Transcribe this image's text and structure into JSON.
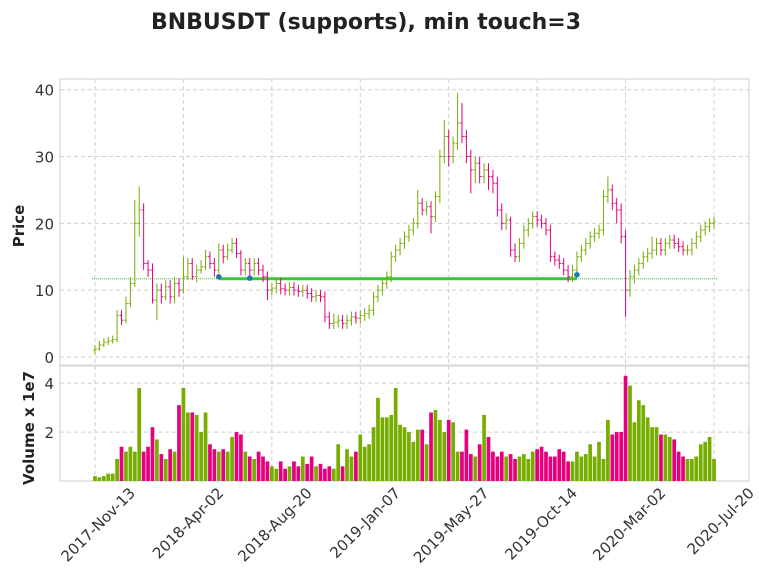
{
  "chart_data": {
    "type": "ohlc",
    "title": "BNBUSDT (supports), min touch=3",
    "ylabel": "Price",
    "volume_label": "Volume x 1e7",
    "up_color": "#76ad00",
    "down_color": "#e6007e",
    "grid": true,
    "categories": [
      "2017-Nov-13",
      null,
      null,
      null,
      null,
      null,
      null,
      null,
      null,
      null,
      null,
      null,
      null,
      null,
      null,
      null,
      null,
      null,
      null,
      null,
      "2018-Apr-02",
      null,
      null,
      null,
      null,
      null,
      null,
      null,
      null,
      null,
      null,
      null,
      null,
      null,
      null,
      null,
      null,
      null,
      null,
      null,
      "2018-Aug-20",
      null,
      null,
      null,
      null,
      null,
      null,
      null,
      null,
      null,
      null,
      null,
      null,
      null,
      null,
      null,
      null,
      null,
      null,
      null,
      "2019-Jan-07",
      null,
      null,
      null,
      null,
      null,
      null,
      null,
      null,
      null,
      null,
      null,
      null,
      null,
      null,
      null,
      null,
      null,
      null,
      null,
      "2019-May-27",
      null,
      null,
      null,
      null,
      null,
      null,
      null,
      null,
      null,
      null,
      null,
      null,
      null,
      null,
      null,
      null,
      null,
      null,
      null,
      "2019-Oct-14",
      null,
      null,
      null,
      null,
      null,
      null,
      null,
      null,
      null,
      null,
      null,
      null,
      null,
      null,
      null,
      null,
      null,
      null,
      null,
      "2020-Mar-02",
      null,
      null,
      null,
      null,
      null,
      null,
      null,
      null,
      null,
      null,
      null,
      null,
      null,
      null,
      null,
      null,
      null,
      null,
      null,
      "2020-Jul-20"
    ],
    "open": [
      1.0,
      1.2,
      1.8,
      2.2,
      2.4,
      2.6,
      6.2,
      5.5,
      8,
      11,
      20,
      22,
      14,
      13,
      8.5,
      10,
      9,
      10.5,
      9,
      11,
      10,
      12,
      14,
      12,
      13,
      13.5,
      15,
      14,
      13,
      16,
      15,
      16,
      17,
      15.5,
      13,
      14,
      13,
      14,
      13,
      12,
      10,
      10.3,
      11,
      10.2,
      10,
      10.4,
      10,
      9.8,
      10,
      9.5,
      9,
      9.2,
      9,
      6,
      5,
      5.2,
      5.5,
      5,
      5.5,
      6,
      5.8,
      6.2,
      6.5,
      7,
      9,
      10,
      11,
      12,
      15,
      16,
      17,
      18,
      19,
      20,
      23,
      22,
      22.5,
      21,
      24,
      30,
      33,
      30,
      32,
      35,
      33,
      30,
      28,
      29,
      27,
      28,
      27,
      26,
      22,
      20,
      20.5,
      16,
      15,
      17,
      19,
      20,
      21,
      20.5,
      20,
      19,
      15,
      14.5,
      14,
      13,
      12,
      13,
      15,
      16,
      17,
      18,
      18.5,
      19,
      24,
      25,
      23,
      22,
      18,
      10,
      12,
      13,
      14,
      15,
      15.5,
      16,
      17,
      16,
      17,
      17.5,
      17,
      16.5,
      16,
      16,
      17,
      18,
      19,
      19.5,
      20
    ],
    "high": [
      1.8,
      2.4,
      2.8,
      3.0,
      3.2,
      7.0,
      7.0,
      9,
      12,
      23.5,
      25.5,
      23,
      14.5,
      14,
      11,
      11,
      11.5,
      11.5,
      12,
      11.8,
      15,
      14.8,
      14.8,
      13.8,
      14.5,
      16,
      15.8,
      14.8,
      17,
      16.8,
      17,
      17.8,
      17.8,
      16,
      14.8,
      14.8,
      14.8,
      14.8,
      13.8,
      12.8,
      11,
      11.8,
      11.8,
      11,
      11.2,
      11.2,
      10.8,
      10.8,
      10.8,
      10.3,
      10,
      10,
      9.8,
      6.8,
      6.5,
      6.3,
      6.3,
      6.3,
      6.8,
      6.8,
      7,
      7.3,
      7.8,
      9.8,
      10.8,
      11.8,
      12.8,
      15.8,
      16.8,
      17.8,
      18.8,
      19.8,
      20.8,
      25,
      23.8,
      23.3,
      23.3,
      24.8,
      31,
      35.5,
      34,
      33,
      39.5,
      38,
      34,
      31,
      30,
      30,
      29,
      29,
      28,
      27,
      23,
      21.5,
      21,
      17,
      17.8,
      19.8,
      20.8,
      21.8,
      21.8,
      21.3,
      20.8,
      19.8,
      15.8,
      15.3,
      14.8,
      13.8,
      13.8,
      15.8,
      16.8,
      17.8,
      18.8,
      19.3,
      19.8,
      25,
      27,
      25.8,
      23.8,
      23,
      19,
      13,
      13.8,
      14.8,
      15.8,
      16.3,
      18,
      17.8,
      17.8,
      17.8,
      18.3,
      18.3,
      17.8,
      17.3,
      16.8,
      17.8,
      18.8,
      19.8,
      20.3,
      20.8,
      21
    ],
    "low": [
      0.4,
      0.9,
      1.5,
      1.8,
      2.0,
      2.2,
      4.8,
      5,
      7.5,
      10.5,
      18,
      13,
      12,
      8,
      5.5,
      8,
      8.5,
      8,
      8,
      9,
      9.5,
      11.5,
      11.5,
      11.2,
      12.5,
      13,
      13.2,
      12,
      12.5,
      14,
      14.5,
      15.5,
      14.8,
      12.2,
      12.2,
      12.2,
      12.2,
      12.2,
      11.2,
      8.5,
      9.2,
      9.5,
      9.4,
      9.2,
      9.2,
      9.2,
      9,
      9,
      8.7,
      8.2,
      8.2,
      8.2,
      5.2,
      4.2,
      4.2,
      4.4,
      4.2,
      4.2,
      4.7,
      5,
      5,
      5.4,
      5.7,
      6.2,
      8.2,
      9.2,
      10.2,
      11.2,
      14.2,
      15.2,
      16.2,
      17.2,
      18.2,
      19.2,
      21.2,
      21.2,
      18.5,
      20.2,
      23,
      29,
      28.5,
      29,
      31,
      32,
      29,
      24.5,
      26,
      26,
      26,
      25,
      24.5,
      21,
      19,
      19,
      15,
      14.2,
      14.2,
      16.2,
      18,
      19.2,
      19.5,
      19.2,
      18.2,
      14.2,
      13.7,
      13.2,
      12.2,
      11.2,
      11.2,
      12.2,
      14.2,
      15.2,
      16.2,
      17.2,
      17.7,
      18.2,
      23,
      22,
      20,
      17,
      6,
      9,
      11,
      12.2,
      13.2,
      14.2,
      14.7,
      15.2,
      15.2,
      15.2,
      16.2,
      16.2,
      15.7,
      15.2,
      15.2,
      15.2,
      16.2,
      17.2,
      18.2,
      18.7,
      19.2
    ],
    "close": [
      1.2,
      1.8,
      2.2,
      2.4,
      2.6,
      6.2,
      5.5,
      8,
      11,
      20,
      22,
      14,
      13,
      8.5,
      10,
      9,
      10.5,
      9,
      11,
      10,
      12,
      14,
      12,
      13,
      13.5,
      15,
      14,
      13,
      16,
      15,
      16,
      17,
      15.5,
      13,
      14,
      13,
      14,
      13,
      12,
      10,
      10.3,
      11,
      10.2,
      10,
      10.4,
      10,
      9.8,
      10,
      9.5,
      9,
      9.2,
      9,
      6,
      5,
      5.2,
      5.5,
      5,
      5.5,
      6,
      5.8,
      6.2,
      6.5,
      7,
      9,
      10,
      11,
      12,
      15,
      16,
      17,
      18,
      19,
      20,
      23,
      22,
      22.5,
      21,
      24,
      30,
      33,
      30,
      32,
      35,
      33,
      30,
      28,
      29,
      27,
      28,
      27,
      26,
      22,
      20,
      20.5,
      16,
      15,
      17,
      19,
      20,
      21,
      20.5,
      20,
      19,
      15,
      14.5,
      14,
      13,
      12,
      13,
      15,
      16,
      17,
      18,
      18.5,
      19,
      24,
      25,
      23,
      22,
      18,
      10,
      12,
      13,
      14,
      15,
      15.5,
      16,
      17,
      16,
      17,
      17.5,
      17,
      16.5,
      16,
      16,
      17,
      18,
      19,
      19.5,
      20,
      20.2
    ],
    "volume": [
      0.2,
      0.15,
      0.2,
      0.3,
      0.3,
      0.9,
      1.4,
      1.2,
      1.4,
      1.2,
      3.8,
      1.2,
      1.4,
      2.2,
      1.7,
      1.1,
      0.9,
      1.3,
      1.2,
      3.1,
      3.8,
      2.8,
      2.8,
      2.7,
      2.0,
      2.8,
      1.5,
      1.3,
      1.2,
      1.3,
      1.2,
      1.8,
      2.0,
      1.9,
      1.2,
      1.0,
      0.9,
      1.2,
      1.0,
      0.8,
      0.6,
      0.5,
      0.8,
      0.5,
      0.6,
      0.8,
      0.6,
      1.0,
      0.7,
      1.0,
      0.6,
      0.7,
      0.5,
      0.6,
      0.5,
      1.5,
      0.6,
      1.3,
      1.0,
      1.2,
      1.9,
      1.4,
      1.5,
      2.2,
      3.4,
      2.6,
      2.6,
      2.7,
      3.8,
      2.3,
      2.2,
      2.0,
      1.6,
      2.1,
      2.1,
      1.5,
      2.8,
      2.9,
      2.5,
      2.0,
      2.5,
      2.4,
      1.2,
      1.2,
      2.1,
      1.1,
      1.0,
      1.5,
      2.7,
      1.8,
      1.2,
      1.0,
      1.2,
      1.0,
      1.1,
      0.9,
      1.0,
      1.1,
      0.9,
      1.2,
      1.3,
      1.4,
      1.2,
      1.0,
      1.0,
      1.3,
      1.2,
      0.8,
      0.8,
      1.2,
      1.0,
      1.1,
      1.5,
      1.0,
      1.6,
      0.9,
      2.5,
      1.9,
      2.0,
      2.0,
      4.3,
      3.9,
      2.4,
      3.3,
      3.1,
      2.6,
      2.2,
      2.2,
      1.9,
      1.9,
      1.8,
      1.7,
      1.2,
      1.0,
      0.9,
      0.9,
      1.0,
      1.5,
      1.6,
      1.8,
      0.9
    ],
    "ylim": [
      -1.2,
      41.6
    ],
    "yticks": [
      0,
      10,
      20,
      30,
      40
    ],
    "volume_ylim": [
      0,
      4.7
    ],
    "volume_yticks": [
      2,
      4
    ],
    "support": {
      "level": 11.7,
      "color": "#33cc33",
      "touch_color": "#1f77b4",
      "touches": [
        28,
        35,
        109
      ],
      "touch_values": [
        12,
        11.8,
        12.3
      ]
    }
  }
}
